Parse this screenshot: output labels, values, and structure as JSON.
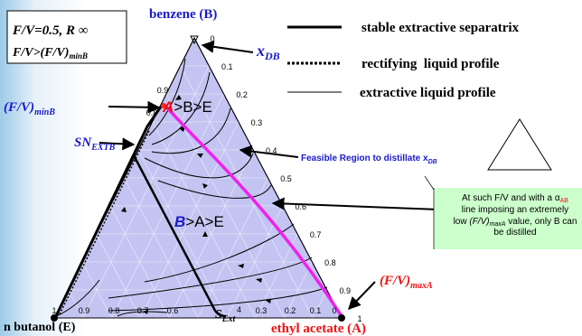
{
  "box": {
    "line1": "F/V=0.5, R ∞",
    "line2_main": "F/V>(F/V)",
    "line2_sub": "minB"
  },
  "vertices": {
    "top_name": "benzene (",
    "top_letter": "B",
    "top_close": ")",
    "left": "n butanol (E)",
    "right_name": "ethyl acetate (",
    "right_letter": "A",
    "right_close": ")"
  },
  "legend": [
    "stable extractive separatrix",
    "rectifying  liquid profile",
    "extractive liquid profile"
  ],
  "labels": {
    "xdb_main": "x",
    "xdb_sub": "DB",
    "fvminb_main": "(F/V)",
    "fvminb_sub": "minB",
    "sn_main": "SN",
    "sn_sub": "EXTB",
    "region1_a": "A",
    "region1_rest": ">B>E",
    "region2_b": "B",
    "region2_rest": ">A>E",
    "feasible_main": "Feasible Region to distillate x",
    "feasible_sub": "DB",
    "alpha_main": "α",
    "alpha_sub": "AB",
    "alpha_eq": "=1",
    "fvmaxa_main": "(F/V)",
    "fvmaxa_sub": "maxA",
    "sext_main": "S",
    "sext_sub": "Ext",
    "sext_num": "4"
  },
  "note": {
    "l1a": "At such F/V and with a α",
    "l1b": "AB",
    "l2": "line imposing an extremely",
    "l3a": "low ",
    "l3b": "(F/V)",
    "l3c": "maxA",
    "l3d": " value, only B can",
    "l4": "be distilled"
  },
  "right_ticks": [
    "0",
    "0.1",
    "0.2",
    "0.3",
    "0.4",
    "0.5",
    "0.6",
    "0.7",
    "0.8",
    "0.9",
    "1"
  ],
  "bottom_ticks": [
    "1",
    "0.9",
    "0.8",
    "0.7",
    "0.6",
    "0.3",
    "0.2",
    "0.1",
    "0"
  ],
  "left_ticks": [
    "0.9",
    "0.8"
  ]
}
